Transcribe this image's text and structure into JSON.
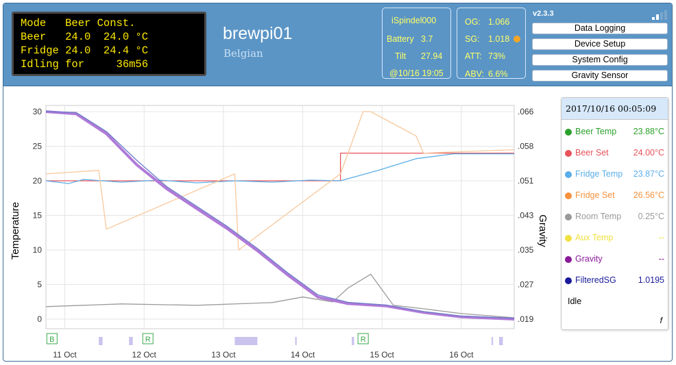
{
  "lcd": {
    "lines": [
      "Mode   Beer Const.",
      "Beer   24.0  24.0 °C",
      "Fridge 24.0  24.4 °C",
      "Idling for     36m56"
    ]
  },
  "device": {
    "name": "brewpi01",
    "beer_name": "Belgian"
  },
  "ispindel": {
    "name": "iSpindel000",
    "battery_label": "Battery",
    "battery_value": "3.7",
    "tilt_label": "Tilt",
    "tilt_value": "27.94",
    "updated": "@10/16 19:05"
  },
  "gravity": {
    "og_label": "OG:",
    "og_value": "1.066",
    "sg_label": "SG:",
    "sg_value": "1.018",
    "att_label": "ATT:",
    "att_value": "73%",
    "abv_label": "ABV:",
    "abv_value": "6.6%",
    "sg_indicator_color": "#f5a623"
  },
  "version": "v2.3.3",
  "buttons": [
    "Data Logging",
    "Device Setup",
    "System Config",
    "Gravity Sensor"
  ],
  "legend": {
    "time": "2017/10/16 00:05:09",
    "items": [
      {
        "name": "Beer Temp",
        "value": "23.88°C",
        "color": "#2ca02c"
      },
      {
        "name": "Beer Set",
        "value": "24.00°C",
        "color": "#e8525a"
      },
      {
        "name": "Fridge Temp",
        "value": "23.87°C",
        "color": "#5aaee8"
      },
      {
        "name": "Fridge Set",
        "value": "26.56°C",
        "color": "#f5923e"
      },
      {
        "name": "Room Temp",
        "value": "0.25°C",
        "color": "#9a9a9a"
      },
      {
        "name": "Aux Temp",
        "value": "--",
        "color": "#f0e040"
      },
      {
        "name": "Gravity",
        "value": "--",
        "color": "#8b1a9b"
      },
      {
        "name": "FilteredSG",
        "value": "1.0195",
        "color": "#1a1a9b"
      }
    ],
    "state": "Idle",
    "f_label": "f"
  },
  "chart_data": {
    "type": "line",
    "ylabel": "Temperature",
    "y2label": "Gravity",
    "ylim": [
      0,
      30
    ],
    "y2lim": [
      1.019,
      1.066
    ],
    "yticks": [
      "30",
      "25",
      "20",
      "15",
      "10",
      "5",
      "0"
    ],
    "y2ticks": [
      ".066",
      ".058",
      ".051",
      ".043",
      ".035",
      ".027",
      ".019"
    ],
    "xticks": [
      "11 Oct",
      "12 Oct",
      "13 Oct",
      "14 Oct",
      "15 Oct",
      "16 Oct"
    ],
    "grid": true,
    "markers": [
      "B",
      "R",
      "R"
    ],
    "series": [
      {
        "name": "Beer Set",
        "color": "#e8525a",
        "x": [
          0,
          3.9,
          3.9,
          6.2
        ],
        "values": [
          20.0,
          20.0,
          24.0,
          24.0
        ]
      },
      {
        "name": "Fridge Temp",
        "color": "#5aaee8",
        "x": [
          0,
          0.3,
          0.5,
          1.0,
          1.5,
          2.0,
          2.5,
          3.0,
          3.5,
          3.9,
          4.4,
          4.9,
          5.4,
          6.2
        ],
        "values": [
          20.0,
          19.6,
          20.2,
          19.8,
          20.1,
          19.7,
          20.0,
          19.8,
          20.1,
          20.0,
          21.5,
          23.2,
          23.9,
          23.9
        ]
      },
      {
        "name": "Fridge Set",
        "color": "#f8c89a",
        "x": [
          0,
          0.7,
          0.8,
          2.5,
          2.55,
          3.9,
          4.2,
          4.3,
          4.9,
          5.0,
          6.2
        ],
        "values": [
          21.0,
          21.5,
          13.0,
          21.0,
          10.0,
          21.0,
          30.0,
          30.0,
          26.5,
          24.0,
          24.5
        ]
      },
      {
        "name": "Room Temp",
        "color": "#9a9a9a",
        "x": [
          0,
          1.0,
          2.0,
          3.0,
          3.4,
          3.8,
          4.0,
          4.3,
          4.6,
          5.0,
          5.5,
          6.2
        ],
        "values": [
          1.8,
          2.2,
          2.0,
          2.4,
          3.2,
          2.5,
          4.5,
          6.5,
          2.0,
          1.5,
          0.8,
          0.2
        ]
      },
      {
        "name": "Gravity",
        "color": "#b07ad8",
        "x": [
          0,
          0.4,
          0.8,
          1.2,
          1.6,
          2.0,
          2.4,
          2.8,
          3.2,
          3.6,
          4.0,
          4.5,
          5.0,
          5.5,
          6.2
        ],
        "values": [
          1.066,
          1.0655,
          1.061,
          1.054,
          1.0485,
          1.044,
          1.0395,
          1.0345,
          1.029,
          1.024,
          1.0225,
          1.022,
          1.0205,
          1.0195,
          1.019
        ]
      },
      {
        "name": "FilteredSG",
        "color": "#6a7ac8",
        "x": [
          0,
          0.4,
          0.8,
          1.2,
          1.6,
          2.0,
          2.4,
          2.8,
          3.2,
          3.6,
          4.0,
          4.5,
          5.0,
          5.5,
          6.2
        ],
        "values": [
          1.066,
          1.0658,
          1.0615,
          1.055,
          1.049,
          1.0445,
          1.04,
          1.035,
          1.0295,
          1.0245,
          1.0228,
          1.0222,
          1.0207,
          1.0197,
          1.0192
        ]
      }
    ]
  }
}
